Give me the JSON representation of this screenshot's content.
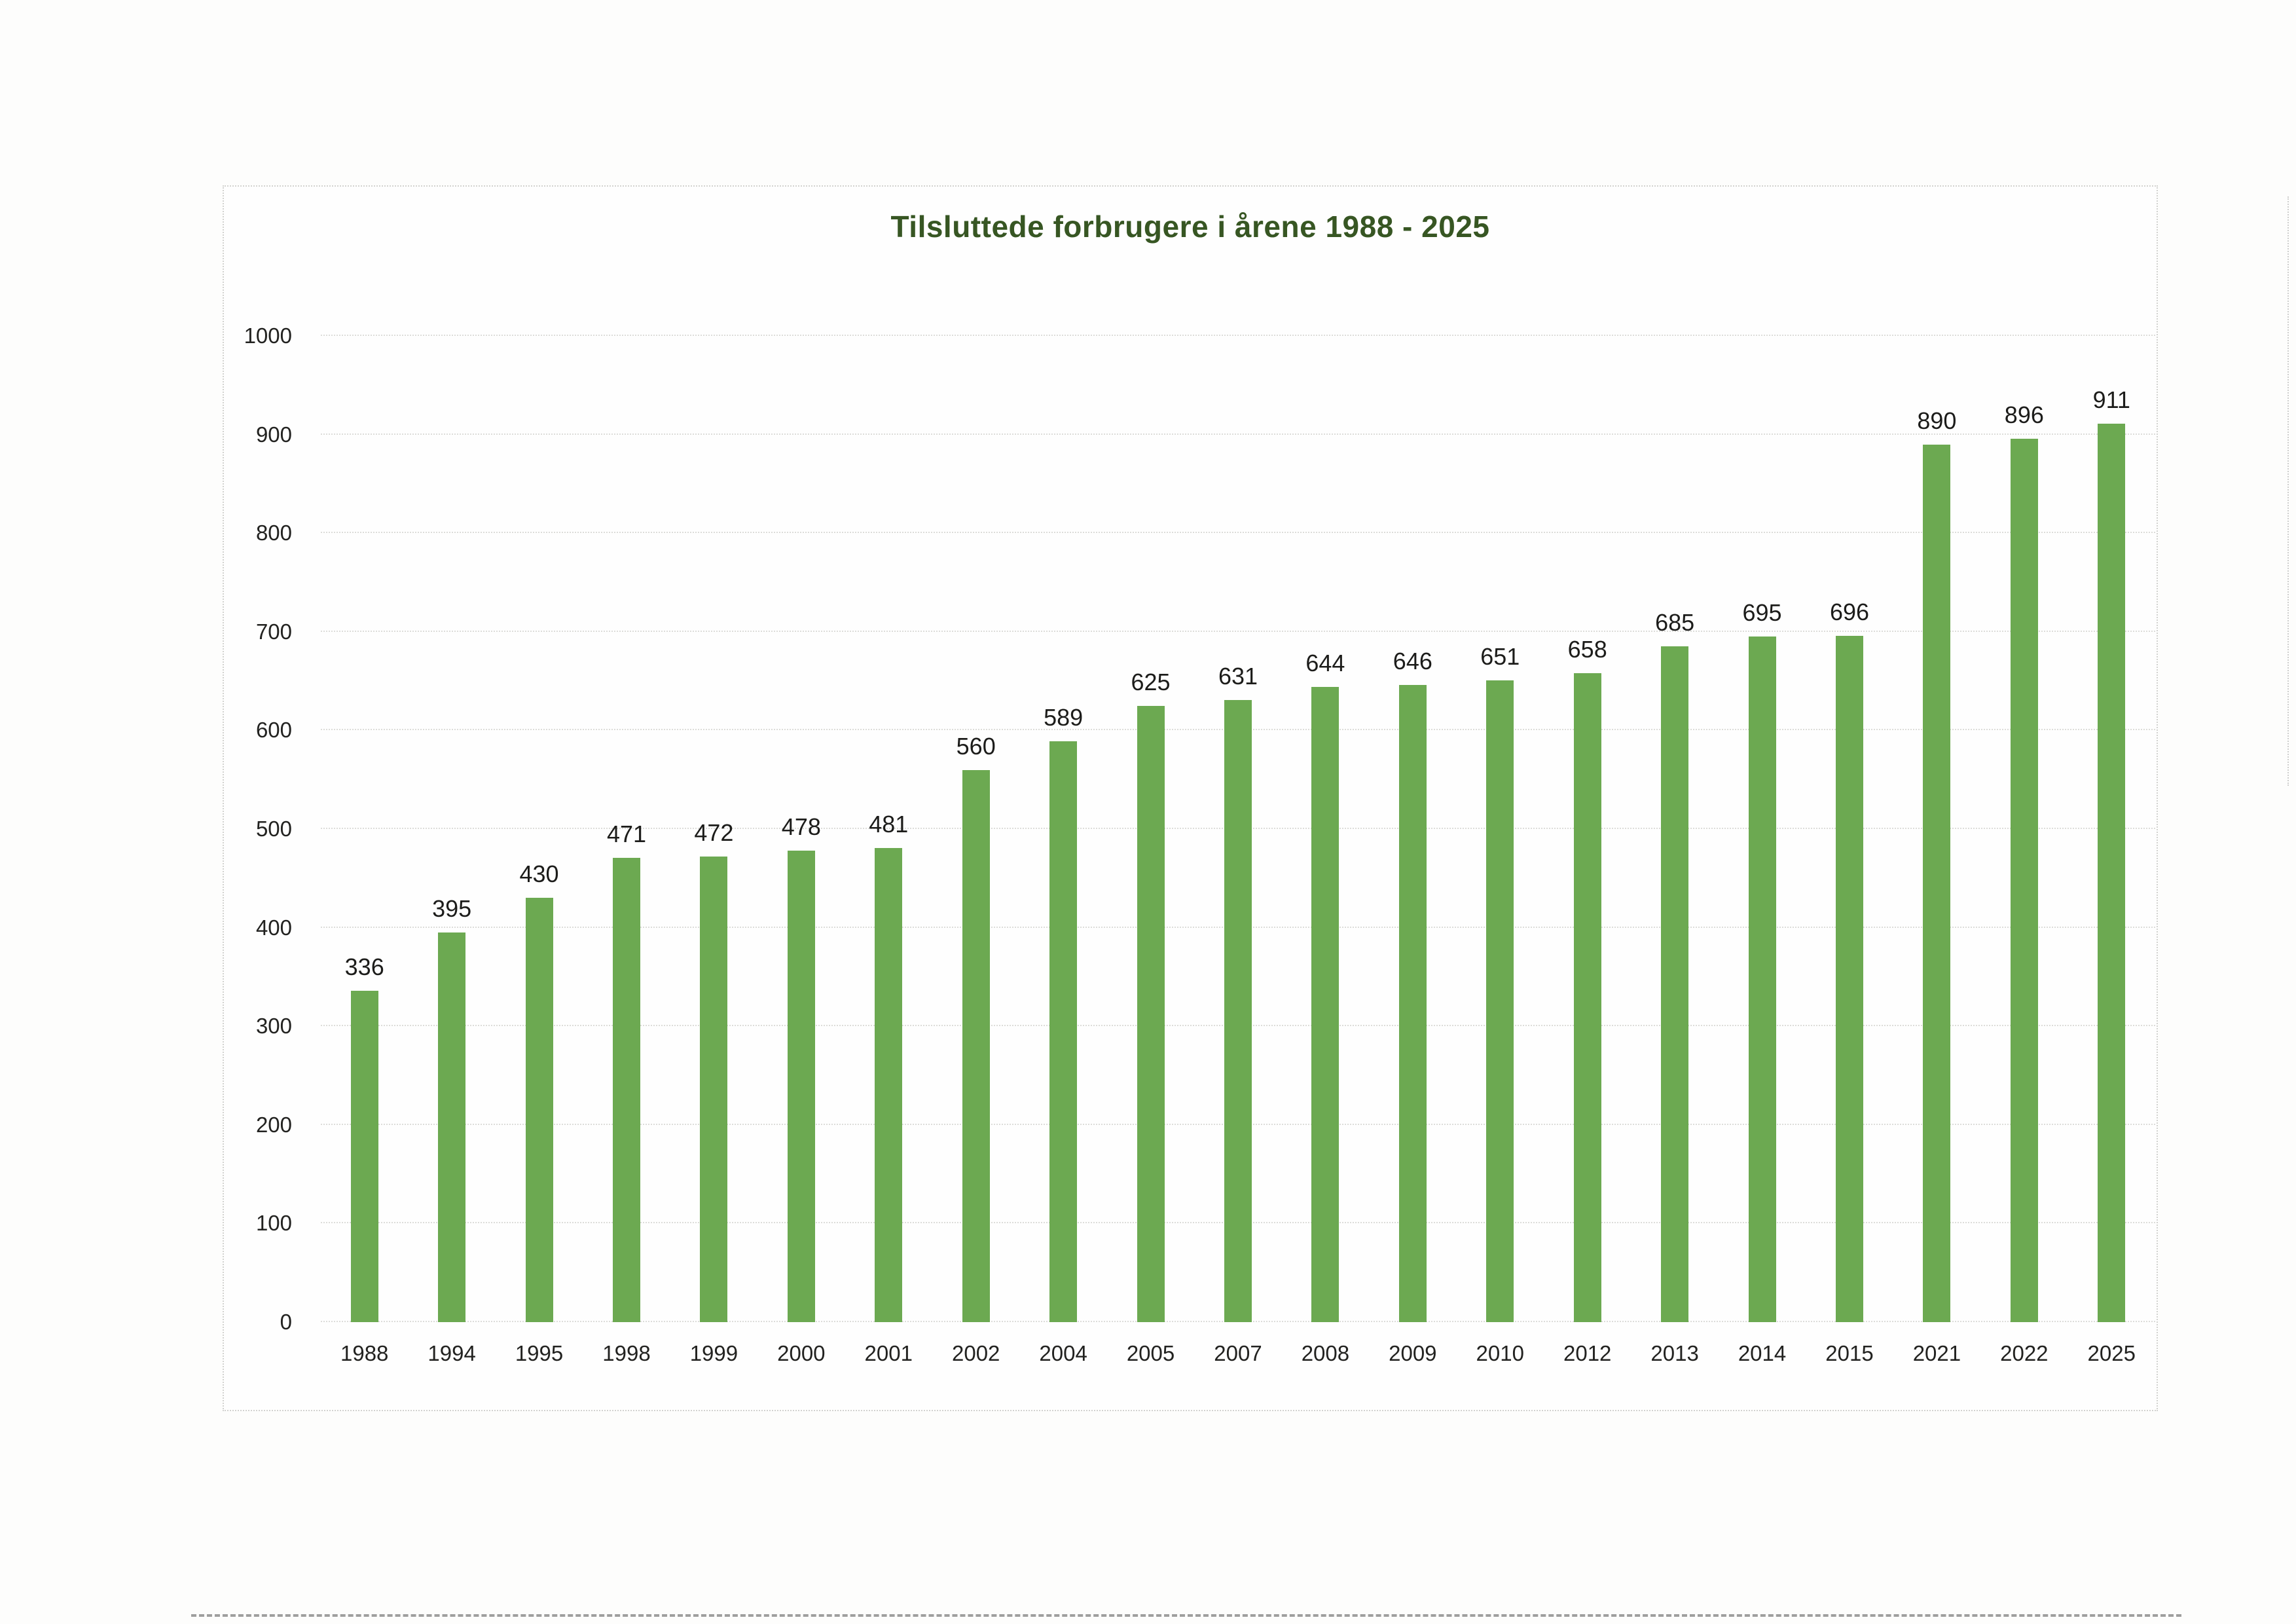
{
  "chart_data": {
    "type": "bar",
    "title": "Tilsluttede forbrugere i årene 1988 - 2025",
    "categories": [
      "1988",
      "1994",
      "1995",
      "1998",
      "1999",
      "2000",
      "2001",
      "2002",
      "2004",
      "2005",
      "2007",
      "2008",
      "2009",
      "2010",
      "2012",
      "2013",
      "2014",
      "2015",
      "2021",
      "2022",
      "2025"
    ],
    "values": [
      336,
      395,
      430,
      471,
      472,
      478,
      481,
      560,
      589,
      625,
      631,
      644,
      646,
      651,
      658,
      685,
      695,
      696,
      890,
      896,
      911
    ],
    "xlabel": "",
    "ylabel": "",
    "ylim": [
      0,
      1000
    ],
    "ytick_step": 100,
    "grid": true,
    "legend": "none",
    "bar_color": "#6ca951",
    "title_color": "#375623",
    "grid_color": "#dcdcd9",
    "text_color": "#222220"
  }
}
